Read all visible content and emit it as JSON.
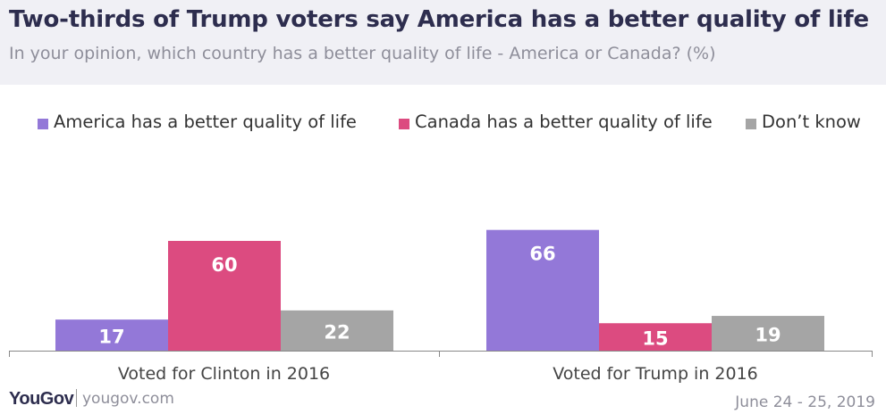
{
  "header": {
    "title": "Two-thirds of Trump voters say America has a better quality of life",
    "subtitle": "In your opinion, which country has a better quality of life - America or Canada? (%)"
  },
  "legend": [
    {
      "label": "America has a better quality of life",
      "color": "#9378d8"
    },
    {
      "label": "Canada has a better quality of life",
      "color": "#dc4b80"
    },
    {
      "label": "Don’t know",
      "color": "#a5a5a5"
    }
  ],
  "chart_data": {
    "type": "bar",
    "categories": [
      "Voted for Clinton in 2016",
      "Voted for Trump in 2016"
    ],
    "series": [
      {
        "name": "America has a better quality of life",
        "color": "#9378d8",
        "values": [
          17,
          66
        ]
      },
      {
        "name": "Canada has a better quality of life",
        "color": "#dc4b80",
        "values": [
          60,
          15
        ]
      },
      {
        "name": "Don’t know",
        "color": "#a5a5a5",
        "values": [
          22,
          19
        ]
      }
    ],
    "ylim": [
      0,
      70
    ],
    "grid": false,
    "legend_position": "top"
  },
  "footer": {
    "logo": "YouGov",
    "url": "yougov.com",
    "date": "June 24 - 25, 2019"
  }
}
